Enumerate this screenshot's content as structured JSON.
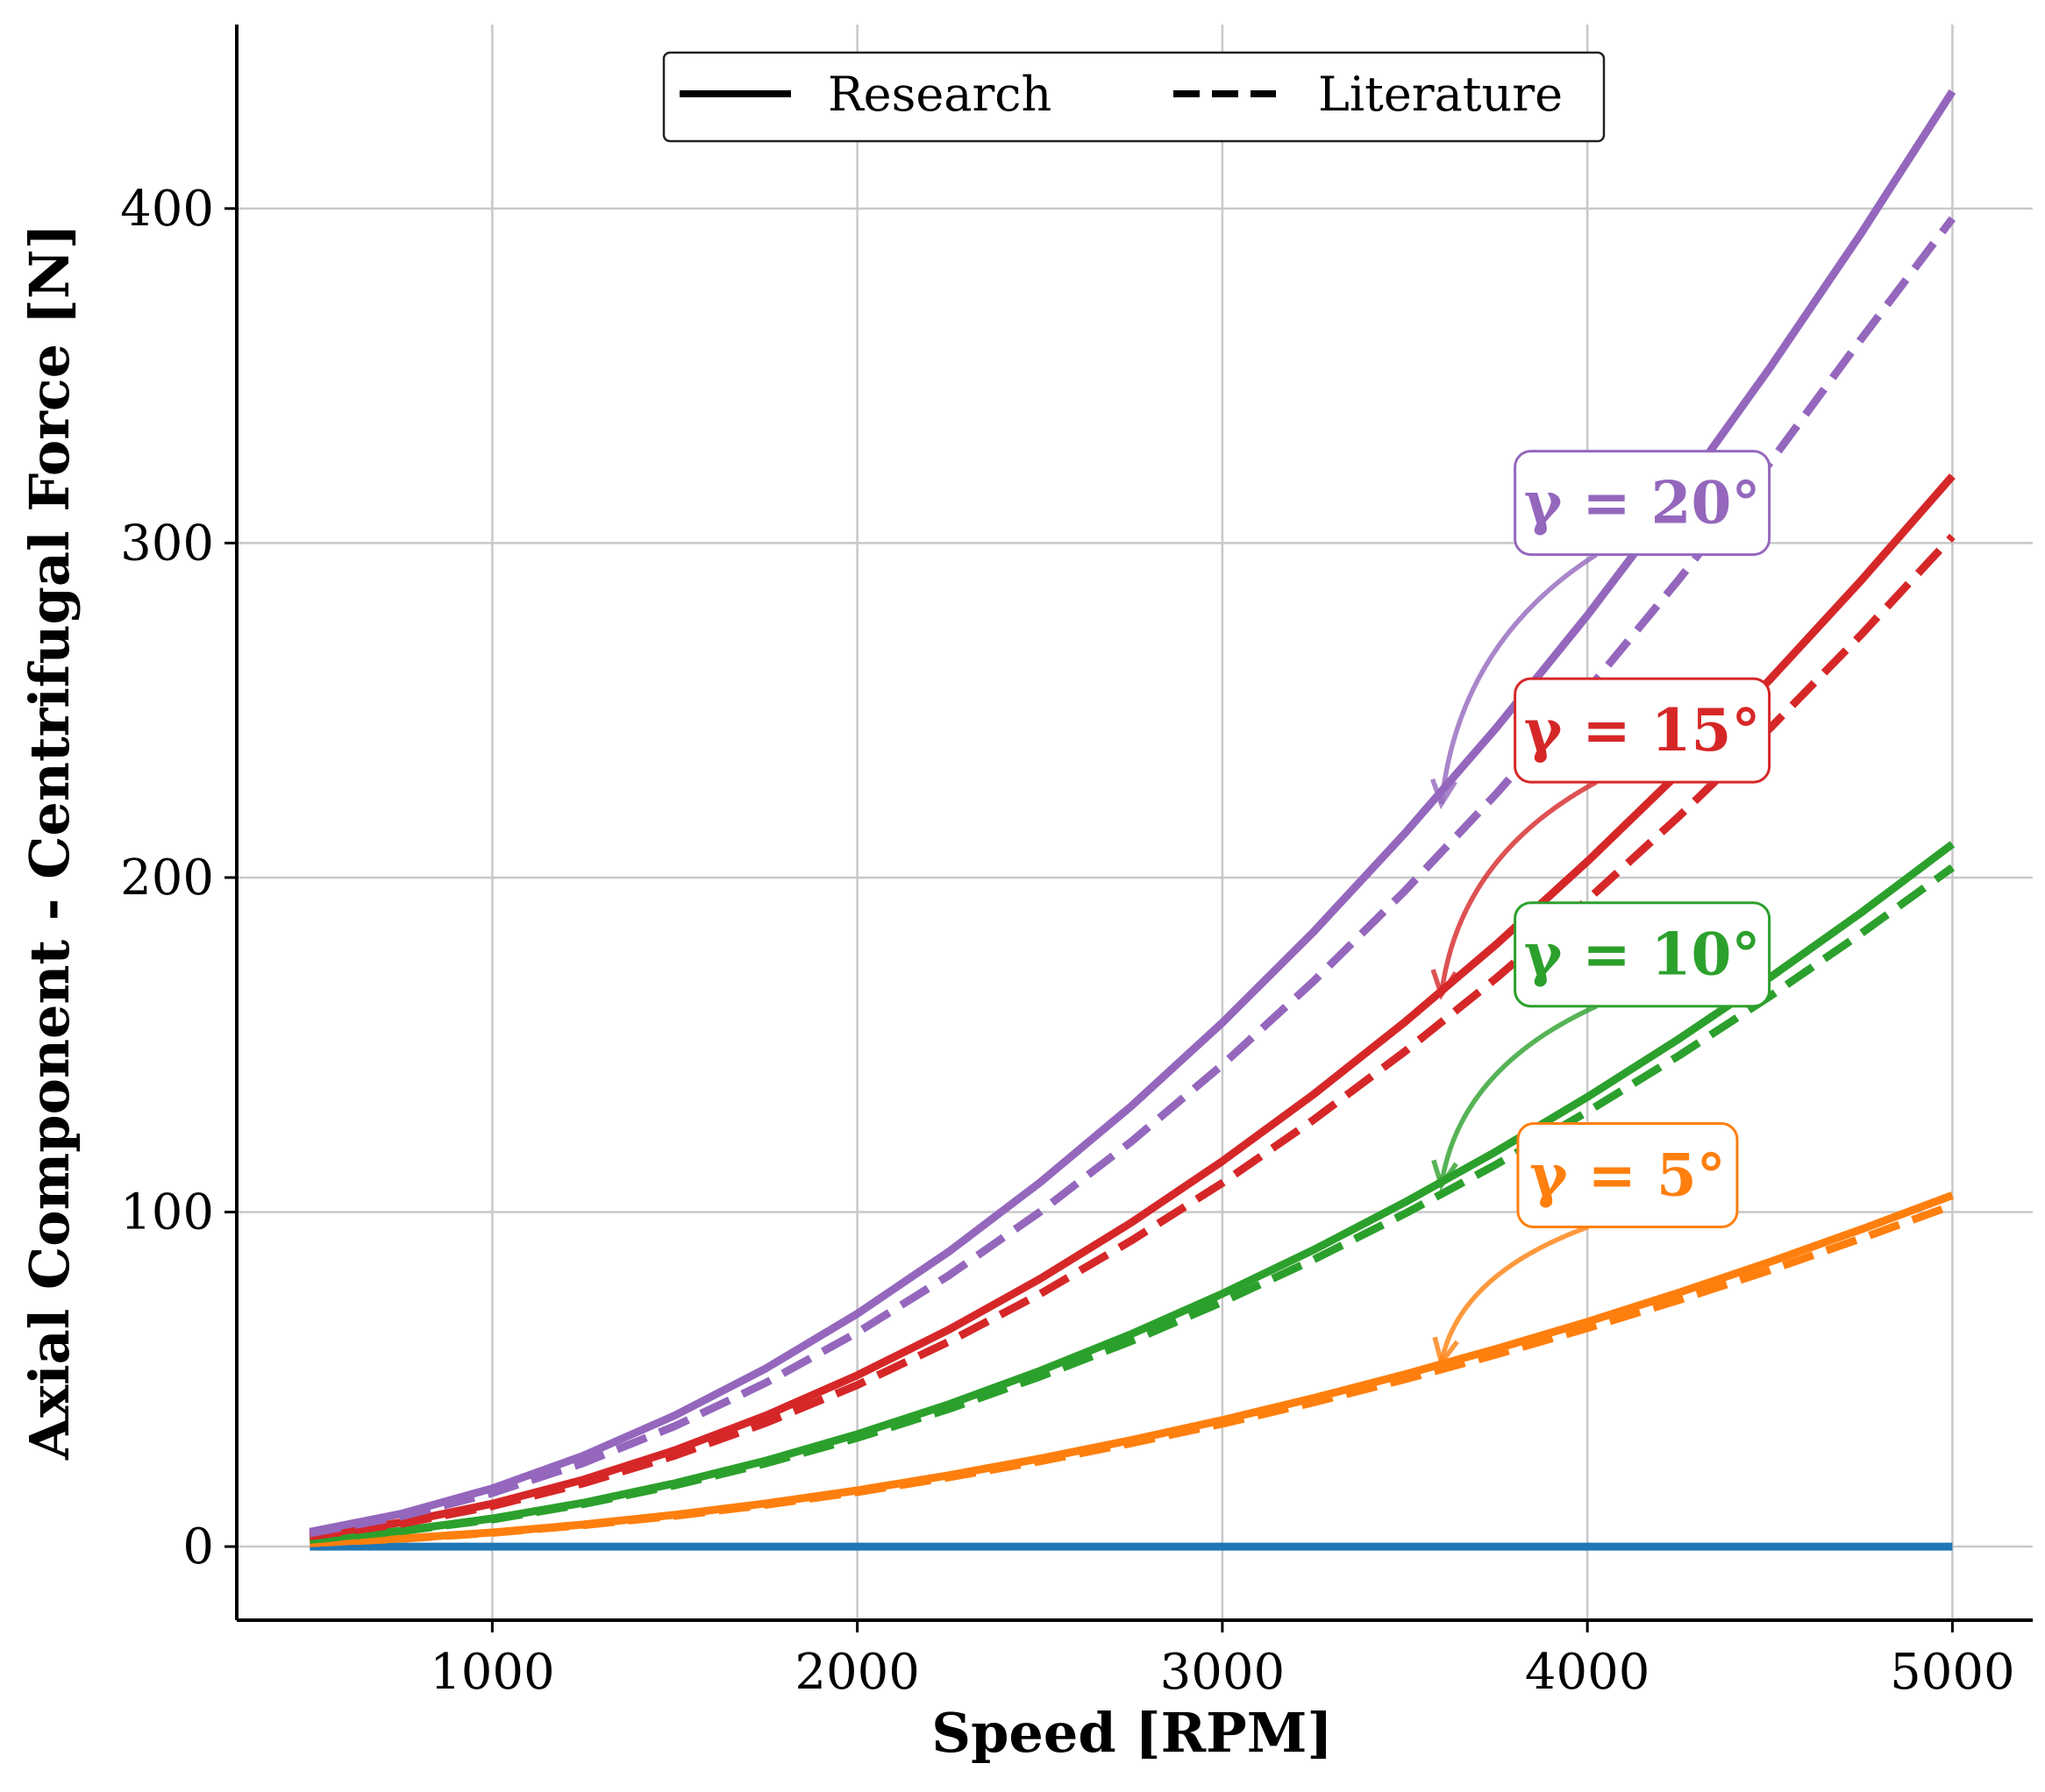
{
  "chart_data": {
    "type": "line",
    "title": "",
    "xlabel": "Speed [RPM]",
    "ylabel": "Axial Component - Centrifugal Force [N]",
    "xlim": [
      300,
      5220
    ],
    "ylim": [
      -22,
      455
    ],
    "xticks": [
      1000,
      2000,
      3000,
      4000,
      5000
    ],
    "yticks": [
      0,
      100,
      200,
      300,
      400
    ],
    "grid": true,
    "legend": {
      "placement": "top-center",
      "entries": [
        {
          "label": "Research",
          "style": "solid"
        },
        {
          "label": "Literature",
          "style": "dashed"
        }
      ]
    },
    "x": [
      500,
      750,
      1000,
      1250,
      1500,
      1750,
      2000,
      2250,
      2500,
      2750,
      3000,
      3250,
      3500,
      3750,
      4000,
      4250,
      4500,
      4750,
      5000
    ],
    "series": [
      {
        "gamma": 0,
        "color": "#1f77b4",
        "style": "solid",
        "values": [
          0,
          0,
          0,
          0,
          0,
          0,
          0,
          0,
          0,
          0,
          0,
          0,
          0,
          0,
          0,
          0,
          0,
          0,
          0
        ]
      },
      {
        "gamma": 5,
        "color": "#ff7f0e",
        "style": "solid",
        "values": [
          1.1,
          2.4,
          4.2,
          6.6,
          9.5,
          12.9,
          16.8,
          21.3,
          26.3,
          31.8,
          37.8,
          44.4,
          51.5,
          59.1,
          67.2,
          75.9,
          85.1,
          94.8,
          105
        ]
      },
      {
        "gamma": 5,
        "color": "#ff7f0e",
        "style": "dashed",
        "values": [
          1.0,
          2.3,
          4.1,
          6.4,
          9.2,
          12.5,
          16.3,
          20.7,
          25.5,
          30.9,
          36.7,
          43.1,
          50.0,
          57.4,
          65.3,
          73.7,
          82.6,
          92.1,
          102
        ]
      },
      {
        "gamma": 10,
        "color": "#2ca02c",
        "style": "solid",
        "values": [
          2.1,
          4.7,
          8.4,
          13.1,
          18.9,
          25.7,
          33.6,
          42.5,
          52.5,
          63.5,
          75.6,
          88.7,
          102.9,
          118.1,
          134.4,
          151.7,
          170.1,
          189.5,
          210
        ]
      },
      {
        "gamma": 10,
        "color": "#2ca02c",
        "style": "dashed",
        "values": [
          2.0,
          4.6,
          8.1,
          12.7,
          18.3,
          24.9,
          32.5,
          41.1,
          50.8,
          61.4,
          73.1,
          85.8,
          99.5,
          114.2,
          130.0,
          146.7,
          164.5,
          183.3,
          203
        ]
      },
      {
        "gamma": 15,
        "color": "#d62728",
        "style": "solid",
        "values": [
          3.2,
          7.2,
          12.8,
          20.0,
          28.8,
          39.2,
          51.2,
          64.8,
          80.0,
          96.8,
          115.2,
          135.2,
          156.8,
          180.0,
          204.8,
          231.2,
          259.2,
          288.8,
          320
        ]
      },
      {
        "gamma": 15,
        "color": "#d62728",
        "style": "dashed",
        "values": [
          3.0,
          6.8,
          12.1,
          18.9,
          27.2,
          37.0,
          48.3,
          61.2,
          75.5,
          91.4,
          108.7,
          127.6,
          148.0,
          169.9,
          193.3,
          218.2,
          244.6,
          272.6,
          302
        ]
      },
      {
        "gamma": 20,
        "color": "#9467bd",
        "style": "solid",
        "values": [
          4.4,
          9.8,
          17.4,
          27.2,
          39.2,
          53.3,
          69.6,
          88.1,
          108.8,
          131.6,
          156.6,
          183.8,
          213.2,
          244.7,
          278.4,
          314.3,
          352.4,
          392.6,
          435
        ]
      },
      {
        "gamma": 20,
        "color": "#9467bd",
        "style": "dashed",
        "values": [
          4.0,
          9.0,
          16.0,
          25.0,
          36.0,
          49.0,
          64.0,
          81.0,
          100.0,
          121.0,
          144.0,
          169.0,
          196.0,
          225.0,
          256.0,
          289.0,
          324.0,
          361.0,
          397
        ]
      }
    ],
    "annotations": [
      {
        "text": "γ = 20°",
        "color": "#9467bd",
        "label_at": [
          4150,
          312
        ],
        "arrow_to": [
          3600,
          222
        ]
      },
      {
        "text": "γ = 15°",
        "color": "#d62728",
        "label_at": [
          4150,
          244
        ],
        "arrow_to": [
          3600,
          165
        ]
      },
      {
        "text": "γ = 10°",
        "color": "#2ca02c",
        "label_at": [
          4150,
          177
        ],
        "arrow_to": [
          3600,
          108
        ]
      },
      {
        "text": "γ = 5°",
        "color": "#ff7f0e",
        "label_at": [
          4110,
          111
        ],
        "arrow_to": [
          3600,
          55
        ]
      }
    ]
  }
}
